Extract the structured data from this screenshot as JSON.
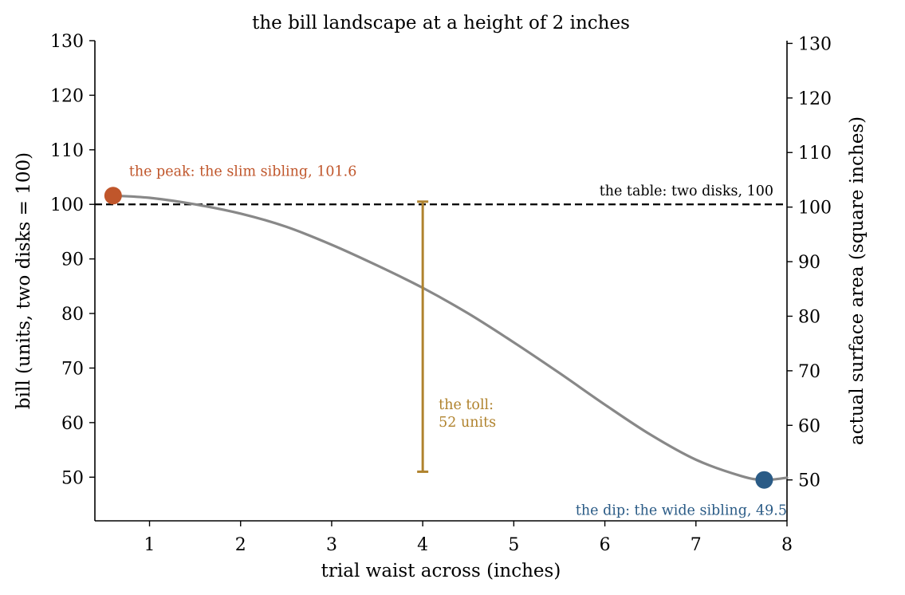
{
  "chart_data": {
    "type": "line",
    "title": "the bill landscape at a height of 2 inches",
    "xlabel": "trial waist across (inches)",
    "ylabel": "bill (units, two disks = 100)",
    "ylabel_right": "actual surface area (square inches)",
    "xlim": [
      0.4,
      8
    ],
    "ylim": [
      42,
      130
    ],
    "ylim_right": [
      42.5,
      130.5
    ],
    "x_ticks": [
      "1",
      "2",
      "3",
      "4",
      "5",
      "6",
      "7",
      "8"
    ],
    "y_ticks": [
      "50",
      "60",
      "70",
      "80",
      "90",
      "100",
      "110",
      "120",
      "130"
    ],
    "y_ticks_right": [
      "50",
      "60",
      "70",
      "80",
      "90",
      "100",
      "110",
      "120",
      "130"
    ],
    "grid": false,
    "series": [
      {
        "color": "#888888",
        "x": [
          0.6,
          1.0,
          1.5,
          2.0,
          2.5,
          3.0,
          3.5,
          4.0,
          4.5,
          5.0,
          5.5,
          6.0,
          6.5,
          7.0,
          7.5,
          7.75,
          8.0
        ],
        "y": [
          101.6,
          101.2,
          100.0,
          98.3,
          95.9,
          92.6,
          88.8,
          84.7,
          80.0,
          74.7,
          69.1,
          63.3,
          57.8,
          53.2,
          50.2,
          49.5,
          49.9
        ]
      }
    ],
    "reference_line": {
      "y": 100,
      "label": "the table: two disks, 100",
      "color": "#000000",
      "style": "dashed"
    },
    "markers": [
      {
        "x": 0.6,
        "y": 101.6,
        "label": "the peak: the slim sibling, 101.6",
        "color": "#c0562b"
      },
      {
        "x": 7.75,
        "y": 49.5,
        "label": "the dip: the wide sibling, 49.5",
        "color": "#2a5b86"
      }
    ],
    "errorbar": {
      "x": 4.0,
      "y_low": 51.0,
      "y_high": 100.5,
      "label_lines": [
        "the toll:",
        "52 units"
      ],
      "color": "#b0832e"
    }
  }
}
